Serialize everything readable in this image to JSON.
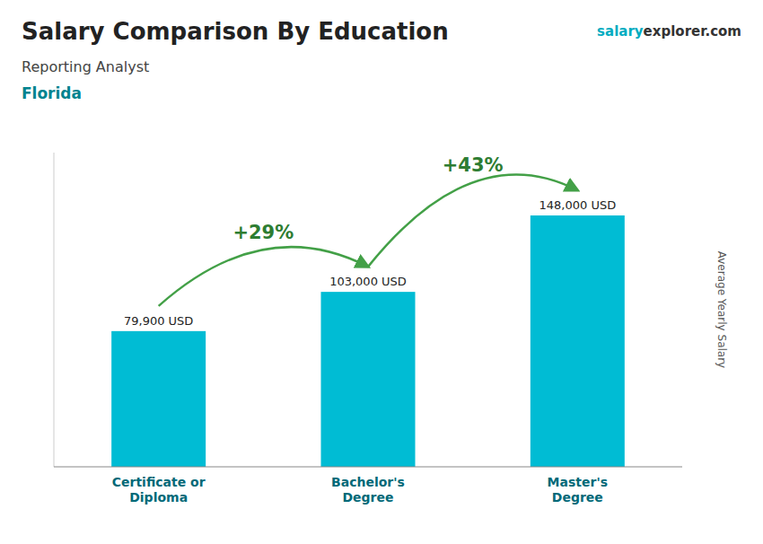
{
  "chart_data": {
    "type": "bar",
    "title": "Salary Comparison By Education",
    "subtitle": "Reporting Analyst",
    "location": "Florida",
    "website": [
      "salary",
      "explorer.com"
    ],
    "ylabel": "Average Yearly Salary",
    "categories": [
      "Certificate or\nDiploma",
      "Bachelor's\nDegree",
      "Master's\nDegree"
    ],
    "values": [
      79900,
      103000,
      148000
    ],
    "value_labels": [
      "79,900 USD",
      "103,000 USD",
      "148,000 USD"
    ],
    "data_labels": true,
    "annotations": [
      "+29%",
      "+43%"
    ],
    "color": "#00bcd4",
    "ylim": [
      0,
      185000
    ],
    "tick_labels": "x",
    "grid": false
  }
}
